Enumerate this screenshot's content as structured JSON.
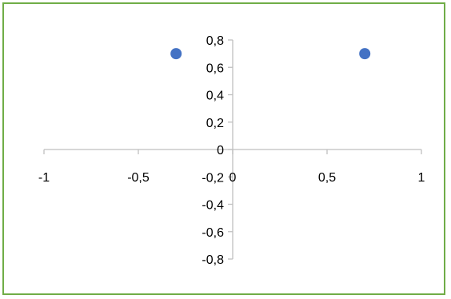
{
  "chart_data": {
    "type": "scatter",
    "title": "",
    "xlabel": "",
    "ylabel": "",
    "xlim": [
      -1,
      1
    ],
    "ylim": [
      -0.8,
      0.8
    ],
    "x_ticks": [
      "-1",
      "-0,5",
      "0",
      "0,5",
      "1"
    ],
    "x_tick_values": [
      -1,
      -0.5,
      0,
      0.5,
      1
    ],
    "y_ticks": [
      "0,8",
      "0,6",
      "0,4",
      "0,2",
      "0",
      "-0,2",
      "-0,4",
      "-0,6",
      "-0,8"
    ],
    "y_tick_values": [
      0.8,
      0.6,
      0.4,
      0.2,
      0,
      -0.2,
      -0.4,
      -0.6,
      -0.8
    ],
    "grid": false,
    "legend": "none",
    "series": [
      {
        "points": [
          {
            "x": -0.3,
            "y": 0.7
          },
          {
            "x": 0.7,
            "y": 0.7
          }
        ],
        "color": "#4472c4"
      }
    ],
    "colors": {
      "frame": "#70ad47",
      "axis": "#bfbfbf",
      "marker": "#4472c4"
    }
  }
}
